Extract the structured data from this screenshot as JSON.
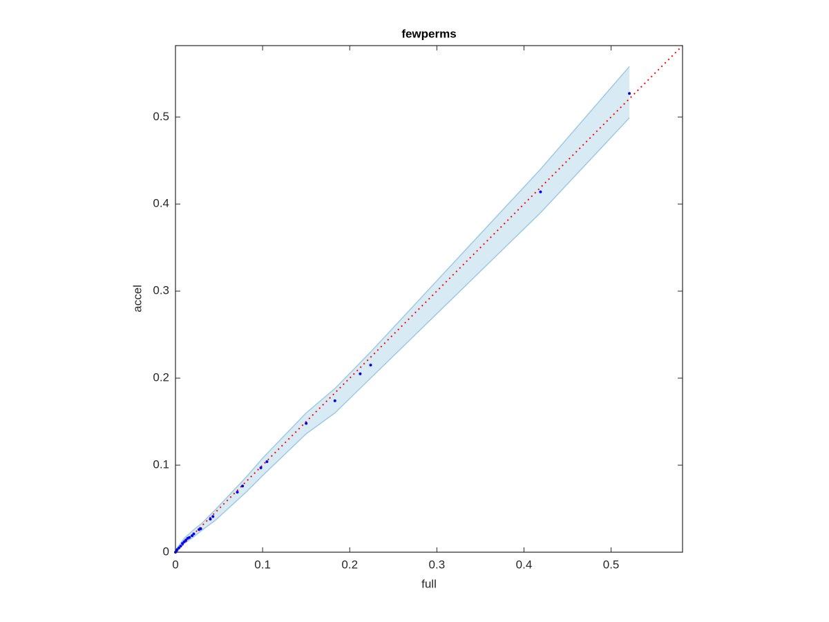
{
  "chart_data": {
    "type": "scatter",
    "title": "fewperms",
    "xlabel": "full",
    "ylabel": "accel",
    "xlim": [
      0,
      0.582
    ],
    "ylim": [
      0,
      0.582
    ],
    "xticks": [
      0,
      0.1,
      0.2,
      0.3,
      0.4,
      0.5
    ],
    "yticks": [
      0,
      0.1,
      0.2,
      0.3,
      0.4,
      0.5
    ],
    "color": "#0000ff",
    "x": [
      0.521,
      0.419,
      0.224,
      0.212,
      0.183,
      0.15,
      0.105,
      0.098,
      0.077,
      0.071,
      0.043,
      0.04,
      0.029,
      0.027,
      0.021,
      0.019,
      0.016,
      0.014,
      0.012,
      0.01,
      0.008,
      0.006,
      0.004,
      0.002,
      0.001,
      0
    ],
    "values": [
      0.527,
      0.414,
      0.215,
      0.205,
      0.174,
      0.148,
      0.104,
      0.097,
      0.076,
      0.069,
      0.041,
      0.038,
      0.027,
      0.026,
      0.021,
      0.019,
      0.017,
      0.016,
      0.014,
      0.012,
      0.01,
      0.007,
      0.005,
      0.003,
      0.001,
      0
    ],
    "band": {
      "color": "#9ecae1",
      "x": [
        0,
        0.01,
        0.02,
        0.03,
        0.045,
        0.08,
        0.1,
        0.15,
        0.183,
        0.224,
        0.419,
        0.521
      ],
      "upper": [
        0.002,
        0.016,
        0.025,
        0.033,
        0.048,
        0.085,
        0.108,
        0.16,
        0.188,
        0.23,
        0.44,
        0.558
      ],
      "lower": [
        0,
        0.01,
        0.017,
        0.025,
        0.036,
        0.068,
        0.088,
        0.136,
        0.16,
        0.2,
        0.39,
        0.499
      ]
    },
    "reference_line": {
      "color": "#ff0000",
      "x": [
        0,
        0.582
      ],
      "values": [
        0,
        0.582
      ]
    }
  }
}
